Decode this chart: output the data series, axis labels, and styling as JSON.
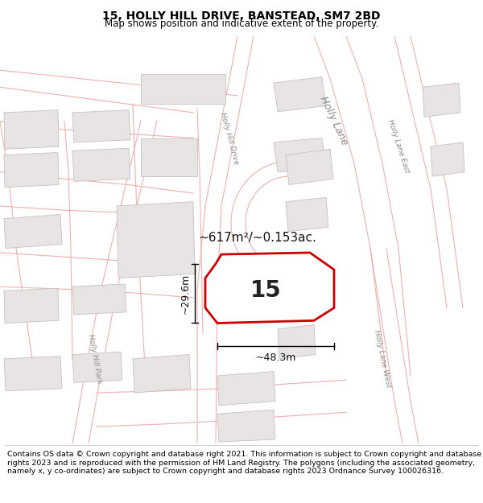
{
  "title": "15, HOLLY HILL DRIVE, BANSTEAD, SM7 2BD",
  "subtitle": "Map shows position and indicative extent of the property.",
  "footer": "Contains OS data © Crown copyright and database right 2021. This information is subject to Crown copyright and database rights 2023 and is reproduced with the permission of HM Land Registry. The polygons (including the associated geometry, namely x, y co-ordinates) are subject to Crown copyright and database rights 2023 Ordnance Survey 100026316.",
  "title_fontsize": 10,
  "subtitle_fontsize": 8.5,
  "footer_fontsize": 6.8,
  "map_bg": "#f8f6f6",
  "road_line_color": "#f0b0b0",
  "building_face_color": "#e8e4e4",
  "building_edge_color": "#c8c0c0",
  "plot_edge": "#cc0000",
  "plot_face": "#ffffff",
  "label_15": "15",
  "area_label": "~617m²/~0.153ac.",
  "dim_width": "~48.3m",
  "dim_height": "~29.6m"
}
